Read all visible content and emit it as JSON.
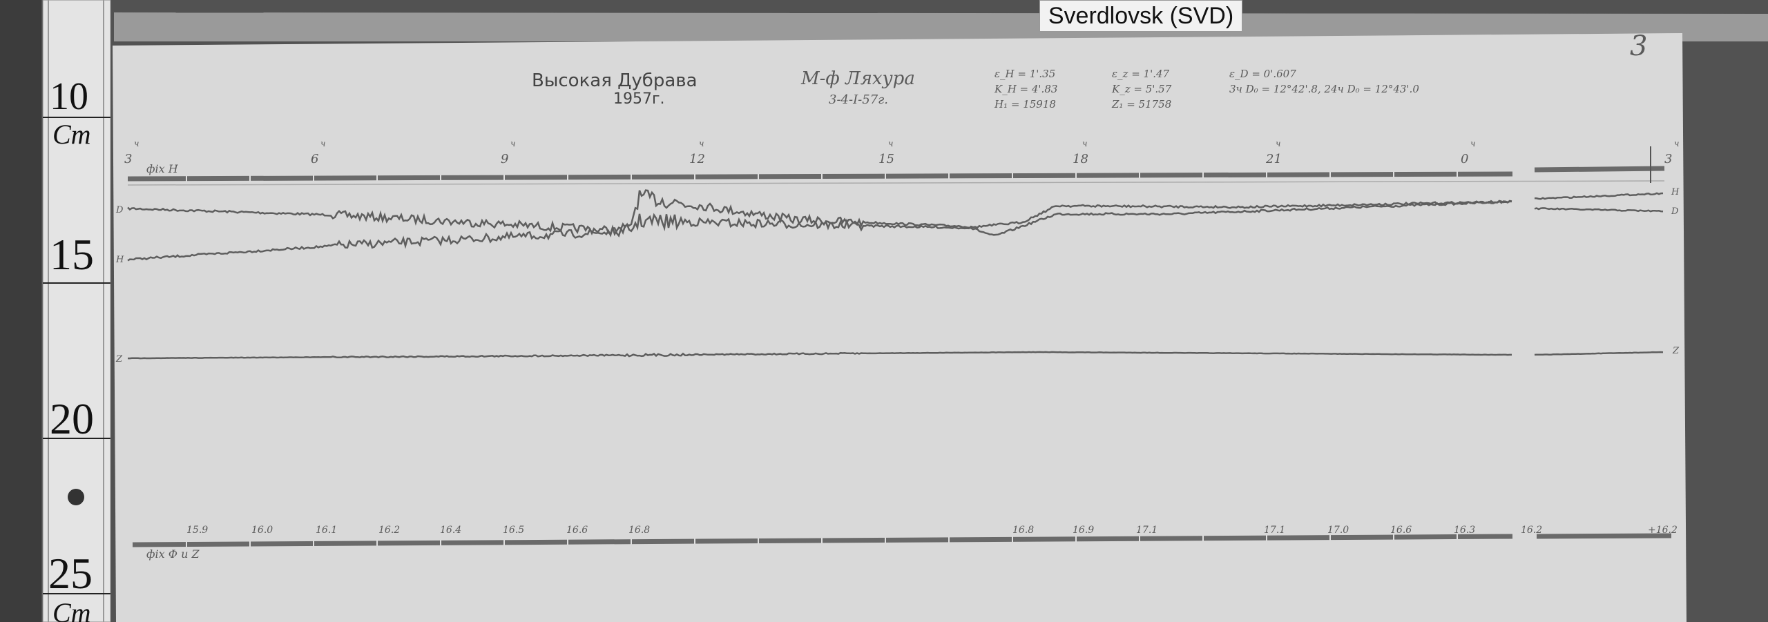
{
  "station_tag": "Sverdlovsk (SVD)",
  "page_number": "3",
  "ruler": {
    "marks": [
      "10",
      "15",
      "20",
      "25"
    ],
    "unit": "Cm"
  },
  "header": {
    "station": "Высокая Дубрава",
    "year": "1957г.",
    "magnetograph": "М-ф Ляхура",
    "dates": "3-4-I-57г.",
    "constants_col1": [
      "ε_H = 1'.35",
      "K_H = 4'.83",
      "H₁ = 15918"
    ],
    "constants_col2": [
      "ε_z = 1'.47",
      "K_z = 5'.57",
      "Z₁ = 51758"
    ],
    "constants_col3": [
      "ε_D = 0'.607",
      "3ч D₀ = 12°42'.8,  24ч D₀ = 12°43'.0"
    ]
  },
  "hour_marks": [
    "3",
    "6",
    "9",
    "12",
    "15",
    "18",
    "21",
    "0",
    "3"
  ],
  "hour_suffix": "ч",
  "baseline_H_label": "фix H",
  "trace_labels": {
    "D": "D",
    "H": "H",
    "Z": "Z"
  },
  "temperature_marks": [
    "15.9",
    "16.0",
    "16.1",
    "16.2",
    "16.4",
    "16.5",
    "16.6",
    "16.8",
    "16.8",
    "16.9",
    "17.1",
    "17.1",
    "17.0",
    "16.6",
    "16.3",
    "16.2",
    "+16.2"
  ],
  "baseline_DZ_label": "фix Ф и Z"
}
